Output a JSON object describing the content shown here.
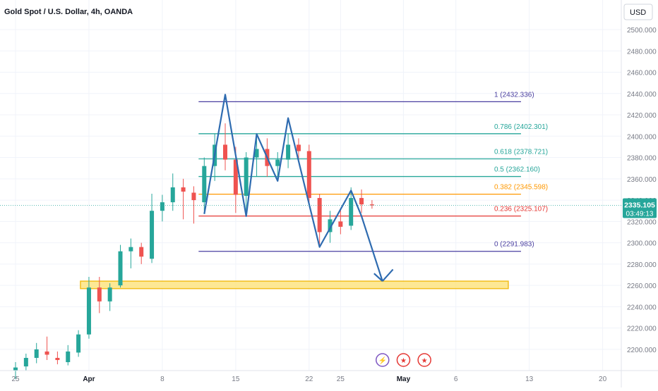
{
  "header": {
    "title": "Gold Spot / U.S. Dollar, 4h, OANDA",
    "currency": "USD"
  },
  "chart_data": {
    "type": "candlestick",
    "symbol": "Gold Spot / U.S. Dollar",
    "timeframe": "4h",
    "exchange": "OANDA",
    "y_axis": {
      "range": [
        2190,
        2510
      ],
      "ticks": [
        2200,
        2220,
        2240,
        2260,
        2280,
        2300,
        2320,
        2340,
        2360,
        2380,
        2400,
        2420,
        2440,
        2460,
        2480,
        2500
      ],
      "tick_labels": [
        "2200.000",
        "2220.000",
        "2240.000",
        "2260.000",
        "2280.000",
        "2300.000",
        "2320.000",
        "2340.000",
        "2360.000",
        "2380.000",
        "2400.000",
        "2420.000",
        "2440.000",
        "2460.000",
        "2480.000",
        "2500.000"
      ]
    },
    "x_axis": {
      "labels": [
        "25",
        "Apr",
        "8",
        "15",
        "22",
        "25",
        "May",
        "6",
        "13",
        "20"
      ],
      "bold_labels": [
        "Apr",
        "May"
      ],
      "dates": [
        "2024-03-25",
        "2024-04-01",
        "2024-04-08",
        "2024-04-15",
        "2024-04-22",
        "2024-04-25",
        "2024-05-01",
        "2024-05-06",
        "2024-05-13",
        "2024-05-20"
      ]
    },
    "current_price": {
      "price": "2335.105",
      "countdown": "03:49:13",
      "value": 2335.105,
      "color": "#26a69a"
    },
    "fibonacci": [
      {
        "ratio": "1",
        "price": 2432.336,
        "label": "1 (2432.336)",
        "color": "#4a3fa0"
      },
      {
        "ratio": "0.786",
        "price": 2402.301,
        "label": "0.786 (2402.301)",
        "color": "#26a69a"
      },
      {
        "ratio": "0.618",
        "price": 2378.721,
        "label": "0.618 (2378.721)",
        "color": "#26a69a"
      },
      {
        "ratio": "0.5",
        "price": 2362.16,
        "label": "0.5 (2362.160)",
        "color": "#26a69a"
      },
      {
        "ratio": "0.382",
        "price": 2345.598,
        "label": "0.382 (2345.598)",
        "color": "#ff9800"
      },
      {
        "ratio": "0.236",
        "price": 2325.107,
        "label": "0.236 (2325.107)",
        "color": "#e53935"
      },
      {
        "ratio": "0",
        "price": 2291.983,
        "label": "0 (2291.983)",
        "color": "#4a3fa0"
      }
    ],
    "support_zone": {
      "low": 2257,
      "high": 2264,
      "start_date": "2024-04-01",
      "end_date": "2024-05-11",
      "fill": "#fde68a",
      "stroke": "#f2b705"
    },
    "pattern_path": {
      "color": "#2e6bb0",
      "points": [
        {
          "date": "2024-04-12",
          "price": 2327
        },
        {
          "date": "2024-04-14",
          "price": 2439
        },
        {
          "date": "2024-04-16",
          "price": 2325
        },
        {
          "date": "2024-04-17",
          "price": 2402
        },
        {
          "date": "2024-04-19",
          "price": 2358
        },
        {
          "date": "2024-04-20",
          "price": 2417
        },
        {
          "date": "2024-04-23",
          "price": 2296
        },
        {
          "date": "2024-04-26",
          "price": 2349
        },
        {
          "date": "2024-04-27",
          "price": 2325
        },
        {
          "date": "2024-04-29",
          "price": 2264
        },
        {
          "date": "2024-04-30",
          "price": 2275
        }
      ]
    },
    "candles": [
      {
        "date": "2024-03-25",
        "open": 2180,
        "high": 2188,
        "low": 2172,
        "close": 2183
      },
      {
        "date": "2024-03-26",
        "open": 2184,
        "high": 2196,
        "low": 2180,
        "close": 2192
      },
      {
        "date": "2024-03-27",
        "open": 2192,
        "high": 2206,
        "low": 2187,
        "close": 2200
      },
      {
        "date": "2024-03-28",
        "open": 2198,
        "high": 2212,
        "low": 2190,
        "close": 2195
      },
      {
        "date": "2024-03-29",
        "open": 2192,
        "high": 2198,
        "low": 2186,
        "close": 2190
      },
      {
        "date": "2024-03-30",
        "open": 2188,
        "high": 2204,
        "low": 2185,
        "close": 2198
      },
      {
        "date": "2024-03-31",
        "open": 2197,
        "high": 2218,
        "low": 2193,
        "close": 2214
      },
      {
        "date": "2024-04-01",
        "open": 2214,
        "high": 2268,
        "low": 2210,
        "close": 2258
      },
      {
        "date": "2024-04-02",
        "open": 2258,
        "high": 2268,
        "low": 2234,
        "close": 2245
      },
      {
        "date": "2024-04-03",
        "open": 2245,
        "high": 2262,
        "low": 2236,
        "close": 2258
      },
      {
        "date": "2024-04-04",
        "open": 2260,
        "high": 2298,
        "low": 2258,
        "close": 2292
      },
      {
        "date": "2024-04-05",
        "open": 2292,
        "high": 2304,
        "low": 2276,
        "close": 2296
      },
      {
        "date": "2024-04-06",
        "open": 2296,
        "high": 2300,
        "low": 2280,
        "close": 2287
      },
      {
        "date": "2024-04-07",
        "open": 2285,
        "high": 2346,
        "low": 2281,
        "close": 2330
      },
      {
        "date": "2024-04-08",
        "open": 2330,
        "high": 2345,
        "low": 2320,
        "close": 2338
      },
      {
        "date": "2024-04-09",
        "open": 2338,
        "high": 2365,
        "low": 2330,
        "close": 2352
      },
      {
        "date": "2024-04-10",
        "open": 2352,
        "high": 2360,
        "low": 2322,
        "close": 2348
      },
      {
        "date": "2024-04-11",
        "open": 2347,
        "high": 2353,
        "low": 2318,
        "close": 2340
      },
      {
        "date": "2024-04-12",
        "open": 2338,
        "high": 2380,
        "low": 2330,
        "close": 2372
      },
      {
        "date": "2024-04-13",
        "open": 2372,
        "high": 2402,
        "low": 2358,
        "close": 2392
      },
      {
        "date": "2024-04-14",
        "open": 2392,
        "high": 2412,
        "low": 2368,
        "close": 2378
      },
      {
        "date": "2024-04-15",
        "open": 2378,
        "high": 2390,
        "low": 2328,
        "close": 2345
      },
      {
        "date": "2024-04-16",
        "open": 2344,
        "high": 2385,
        "low": 2330,
        "close": 2380
      },
      {
        "date": "2024-04-17",
        "open": 2380,
        "high": 2402,
        "low": 2362,
        "close": 2388
      },
      {
        "date": "2024-04-18",
        "open": 2388,
        "high": 2398,
        "low": 2362,
        "close": 2372
      },
      {
        "date": "2024-04-19",
        "open": 2372,
        "high": 2385,
        "low": 2358,
        "close": 2378
      },
      {
        "date": "2024-04-20",
        "open": 2378,
        "high": 2402,
        "low": 2370,
        "close": 2392
      },
      {
        "date": "2024-04-21",
        "open": 2392,
        "high": 2398,
        "low": 2378,
        "close": 2386
      },
      {
        "date": "2024-04-22",
        "open": 2386,
        "high": 2392,
        "low": 2338,
        "close": 2342
      },
      {
        "date": "2024-04-23",
        "open": 2342,
        "high": 2346,
        "low": 2296,
        "close": 2310
      },
      {
        "date": "2024-04-24",
        "open": 2310,
        "high": 2330,
        "low": 2300,
        "close": 2322
      },
      {
        "date": "2024-04-25",
        "open": 2320,
        "high": 2332,
        "low": 2308,
        "close": 2315
      },
      {
        "date": "2024-04-26",
        "open": 2316,
        "high": 2352,
        "low": 2312,
        "close": 2342
      },
      {
        "date": "2024-04-27",
        "open": 2342,
        "high": 2350,
        "low": 2328,
        "close": 2336
      },
      {
        "date": "2024-04-28",
        "open": 2336,
        "high": 2340,
        "low": 2332,
        "close": 2335.105
      }
    ]
  },
  "events": [
    {
      "name": "lightning-event-icon",
      "date": "2024-04-29",
      "symbol": "⚡"
    },
    {
      "name": "us-flag-event-icon",
      "date": "2024-05-01",
      "symbol": "★"
    },
    {
      "name": "us-flag-event-icon",
      "date": "2024-05-03",
      "symbol": "★"
    }
  ]
}
